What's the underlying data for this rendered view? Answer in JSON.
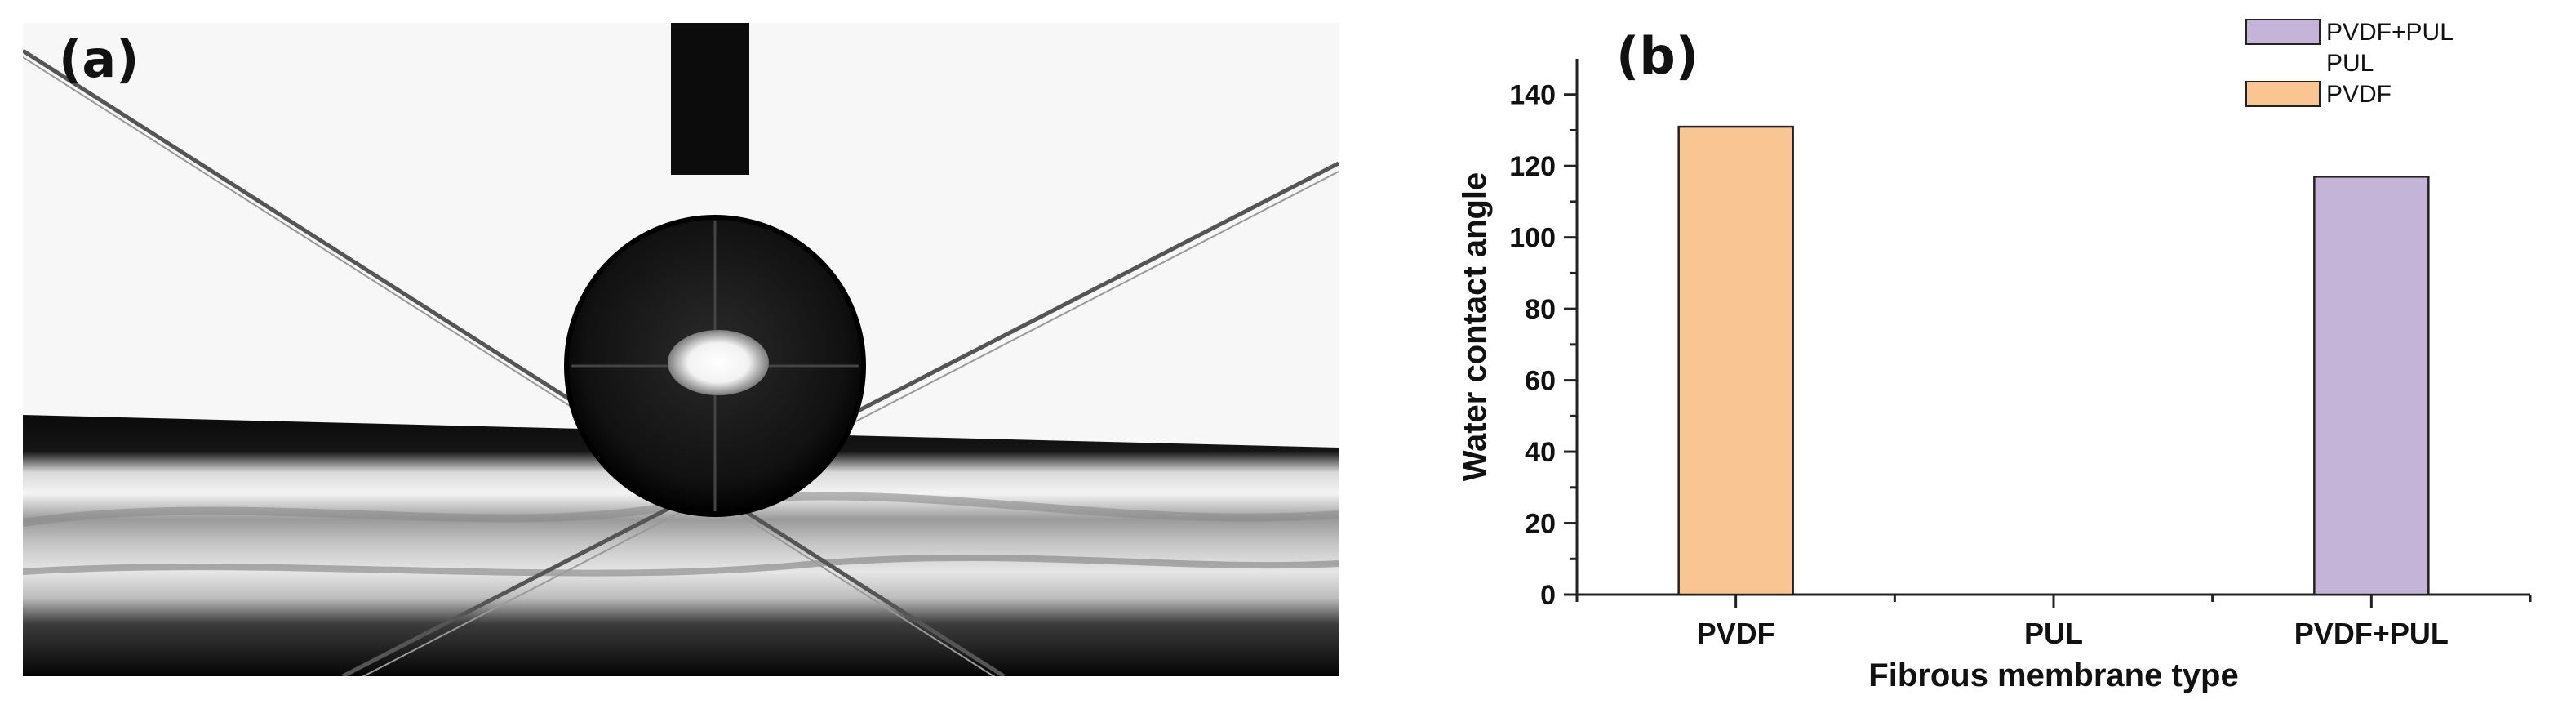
{
  "panel_a": {
    "label": "(a)"
  },
  "panel_b": {
    "label": "(b)"
  },
  "chart_data": {
    "type": "bar",
    "categories": [
      "PVDF",
      "PUL",
      "PVDF+PUL"
    ],
    "values": [
      131,
      0,
      117
    ],
    "colors": [
      "#f9c592",
      "#f9c592",
      "#c4b4d8"
    ],
    "xlabel": "Fibrous membrane type",
    "ylabel": "Water contact angle",
    "ylim": [
      0,
      150
    ],
    "yticks": [
      0,
      20,
      40,
      60,
      80,
      100,
      120,
      140
    ],
    "grid": false,
    "legend": {
      "placement": "top-right",
      "entries": [
        {
          "name": "PVDF+PUL",
          "color": "#c4b4d8",
          "swatch": true
        },
        {
          "name": "PUL",
          "color": "#f9c592",
          "swatch": false
        },
        {
          "name": "PVDF",
          "color": "#f9c592",
          "swatch": true
        }
      ]
    }
  }
}
